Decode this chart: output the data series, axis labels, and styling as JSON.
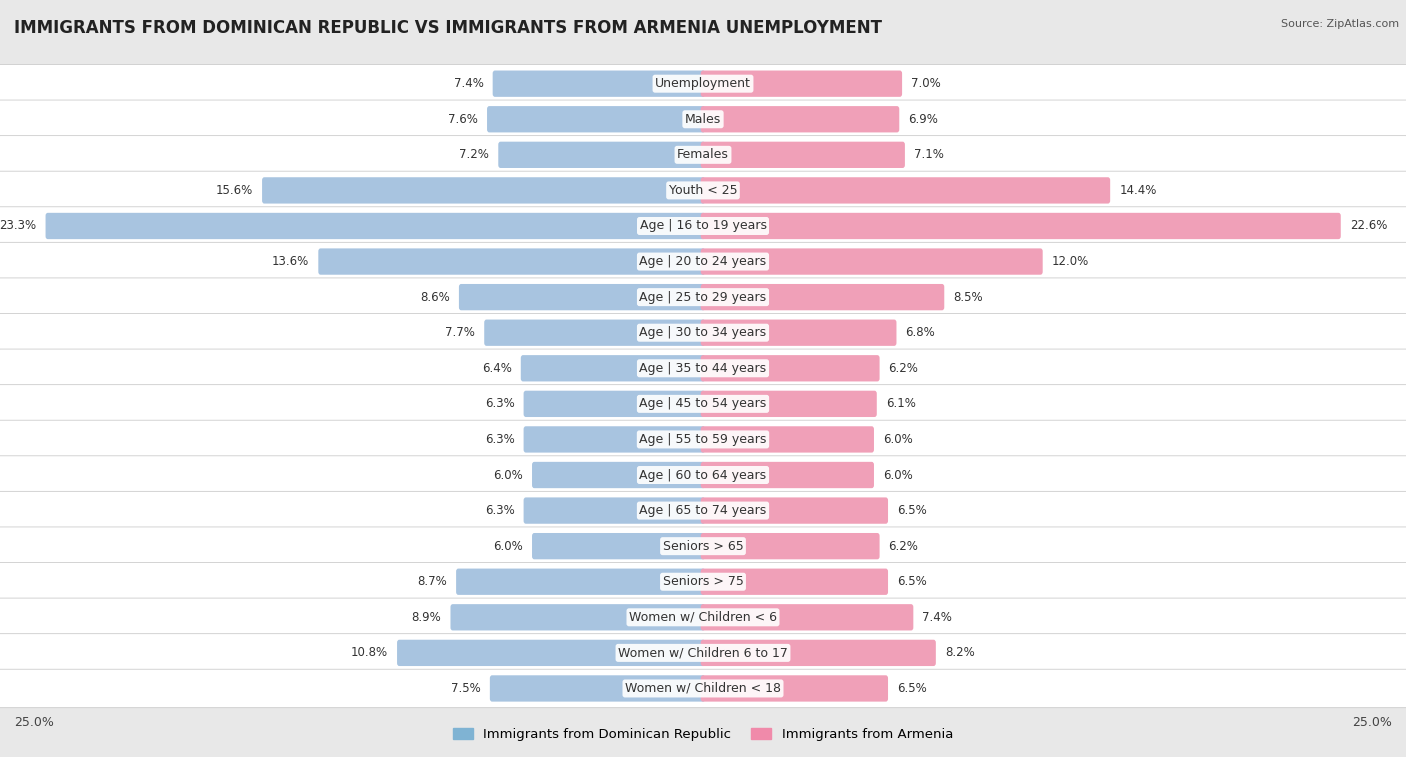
{
  "title": "IMMIGRANTS FROM DOMINICAN REPUBLIC VS IMMIGRANTS FROM ARMENIA UNEMPLOYMENT",
  "source": "Source: ZipAtlas.com",
  "categories": [
    "Unemployment",
    "Males",
    "Females",
    "Youth < 25",
    "Age | 16 to 19 years",
    "Age | 20 to 24 years",
    "Age | 25 to 29 years",
    "Age | 30 to 34 years",
    "Age | 35 to 44 years",
    "Age | 45 to 54 years",
    "Age | 55 to 59 years",
    "Age | 60 to 64 years",
    "Age | 65 to 74 years",
    "Seniors > 65",
    "Seniors > 75",
    "Women w/ Children < 6",
    "Women w/ Children 6 to 17",
    "Women w/ Children < 18"
  ],
  "left_values": [
    7.4,
    7.6,
    7.2,
    15.6,
    23.3,
    13.6,
    8.6,
    7.7,
    6.4,
    6.3,
    6.3,
    6.0,
    6.3,
    6.0,
    8.7,
    8.9,
    10.8,
    7.5
  ],
  "right_values": [
    7.0,
    6.9,
    7.1,
    14.4,
    22.6,
    12.0,
    8.5,
    6.8,
    6.2,
    6.1,
    6.0,
    6.0,
    6.5,
    6.2,
    6.5,
    7.4,
    8.2,
    6.5
  ],
  "left_color": "#a8c4e0",
  "right_color": "#f0a0b8",
  "left_label": "Immigrants from Dominican Republic",
  "right_label": "Immigrants from Armenia",
  "left_legend_color": "#7fb3d3",
  "right_legend_color": "#f08aaa",
  "bg_color": "#e8e8e8",
  "bar_row_color": "#f5f5f5",
  "xlim": 25.0,
  "title_fontsize": 12,
  "label_fontsize": 9,
  "value_fontsize": 8.5,
  "source_fontsize": 8
}
